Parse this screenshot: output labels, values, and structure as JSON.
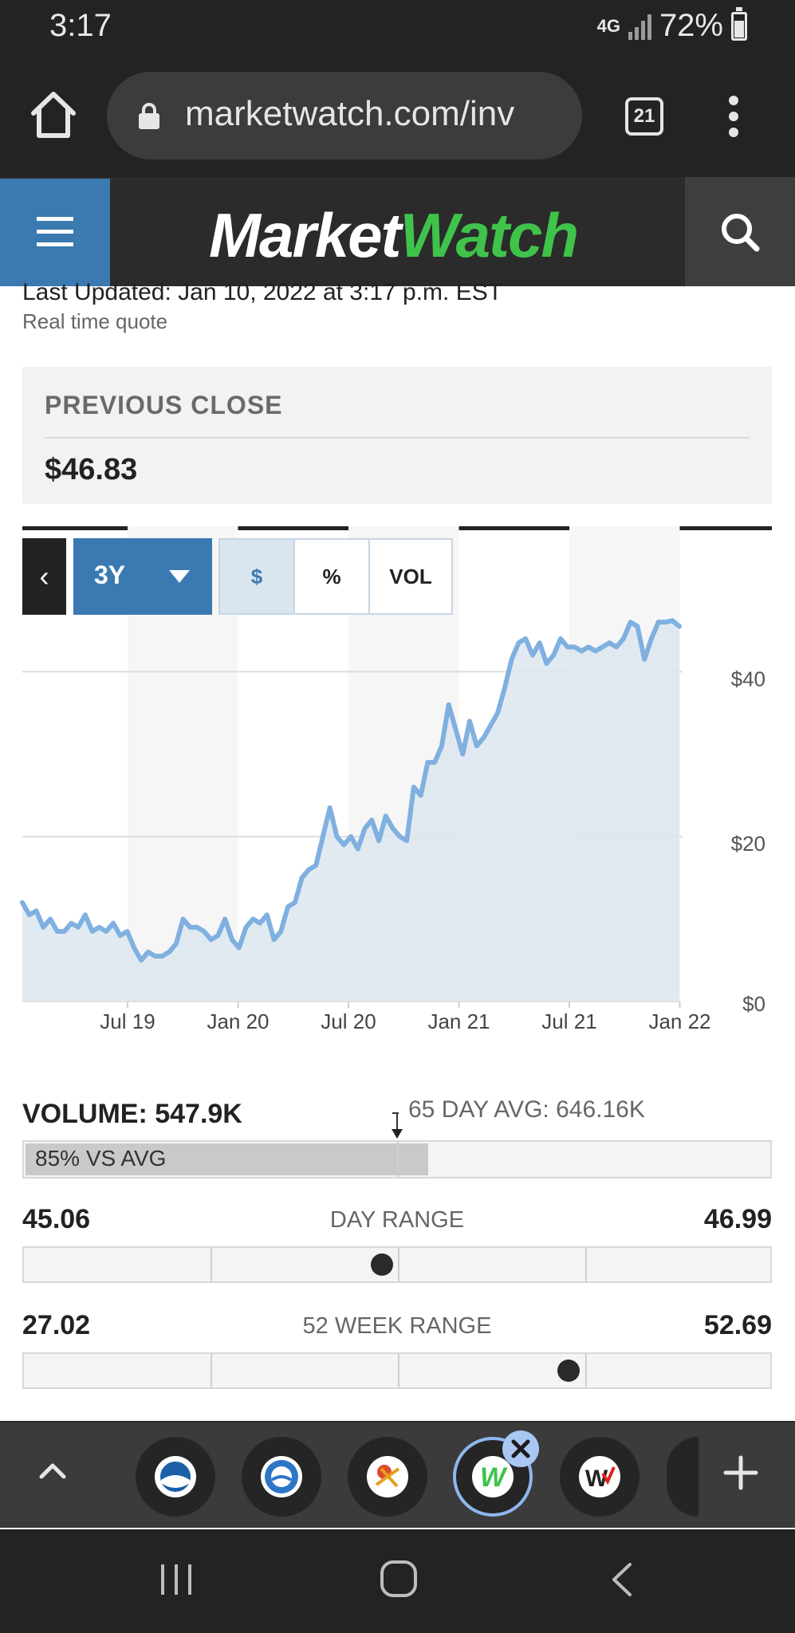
{
  "status_bar": {
    "time": "3:17",
    "network": "4G",
    "battery": "72%"
  },
  "browser": {
    "url": "marketwatch.com/inv",
    "tab_count": "21"
  },
  "site": {
    "logo_part1": "Market",
    "logo_part2": "Watch",
    "brand_color": "#3a7ab0",
    "logo_accent": "#3fc34a"
  },
  "quote": {
    "last_updated": "Last Updated: Jan 10, 2022 at 3:17 p.m. EST",
    "realtime": "Real time quote",
    "previous_close_label": "PREVIOUS CLOSE",
    "previous_close_value": "$46.83"
  },
  "chart_controls": {
    "back": "‹",
    "range": "3Y",
    "modes": [
      "$",
      "%",
      "VOL"
    ],
    "active_mode": "$"
  },
  "chart_data": {
    "type": "area",
    "title": "",
    "xlabel": "",
    "ylabel": "",
    "x_ticks": [
      "Jul 19",
      "Jan 20",
      "Jul 20",
      "Jan 21",
      "Jul 21",
      "Jan 22"
    ],
    "y_ticks": [
      "$40",
      "$20",
      "$0"
    ],
    "ylim": [
      0,
      47
    ],
    "xlim": [
      "Jan 19",
      "Jan 22"
    ],
    "grid": true,
    "line_color": "#7fb0e0",
    "fill_color": "#dde6ee",
    "series": [
      {
        "values": [
          12,
          10.5,
          11,
          9,
          10,
          8.5,
          8.5,
          9.5,
          9,
          10.5,
          8.5,
          9,
          8.5,
          9.5,
          8,
          8.5,
          6.5,
          5,
          6,
          5.5,
          5.5,
          6,
          7,
          10,
          9,
          9,
          8.5,
          7.5,
          8,
          10,
          7.5,
          6.5,
          9,
          10,
          9.5,
          10.5,
          7.5,
          8.5,
          11.5,
          12,
          15,
          16,
          16.5,
          20,
          23.5,
          20,
          19,
          20,
          18.5,
          21,
          22,
          19.5,
          22.5,
          21,
          20,
          19.5,
          26,
          25,
          29,
          29,
          31,
          36,
          33,
          30,
          34,
          31,
          32,
          33.5,
          35,
          38,
          41.5,
          43.5,
          44,
          42,
          43.5,
          41,
          42,
          44,
          43,
          43,
          42.5,
          43,
          42.5,
          43,
          43.5,
          43,
          44,
          46,
          45.5,
          41.5,
          44,
          46,
          46,
          46.2,
          45.5
        ]
      }
    ]
  },
  "volume": {
    "label": "VOLUME: 547.9K",
    "avg_label": "65 DAY AVG: 646.16K",
    "vs_avg_label": "85% VS AVG",
    "vs_avg_fraction": 0.85
  },
  "day_range": {
    "low": "45.06",
    "label": "DAY RANGE",
    "high": "46.99",
    "position_fraction": 0.48
  },
  "week52_range": {
    "low": "27.02",
    "label": "52 WEEK RANGE",
    "high": "52.69",
    "position_fraction": 0.73
  },
  "bottom_tabs": {
    "count": 5,
    "selected_index": 3
  }
}
